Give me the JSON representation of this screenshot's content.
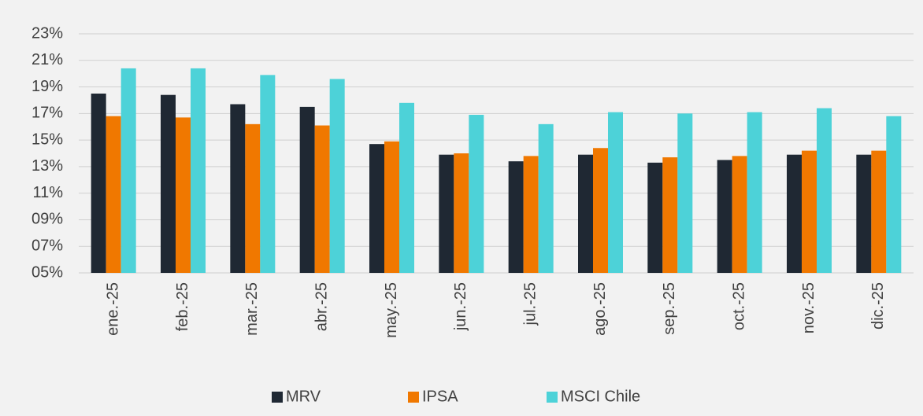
{
  "chart_data": {
    "type": "bar",
    "categories": [
      "ene.-25",
      "feb.-25",
      "mar.-25",
      "abr.-25",
      "may.-25",
      "jun.-25",
      "jul.-25",
      "ago.-25",
      "sep.-25",
      "oct.-25",
      "nov.-25",
      "dic.-25"
    ],
    "series": [
      {
        "name": "MRV",
        "color": "#1f2833",
        "values": [
          18.5,
          18.4,
          17.7,
          17.5,
          14.7,
          13.9,
          13.4,
          13.9,
          13.3,
          13.5,
          13.9,
          13.9
        ]
      },
      {
        "name": "IPSA",
        "color": "#f07800",
        "values": [
          16.8,
          16.7,
          16.2,
          16.1,
          14.9,
          14.0,
          13.8,
          14.4,
          13.7,
          13.8,
          14.2,
          14.2
        ]
      },
      {
        "name": "MSCI Chile",
        "color": "#4dd2d8",
        "values": [
          20.4,
          20.4,
          19.9,
          19.6,
          17.8,
          16.9,
          16.2,
          17.1,
          17.0,
          17.1,
          17.4,
          16.8
        ]
      }
    ],
    "ylim": [
      5,
      23
    ],
    "yticks": [
      {
        "value": 5,
        "label": "05%"
      },
      {
        "value": 7,
        "label": "07%"
      },
      {
        "value": 9,
        "label": "09%"
      },
      {
        "value": 11,
        "label": "11%"
      },
      {
        "value": 13,
        "label": "13%"
      },
      {
        "value": 15,
        "label": "15%"
      },
      {
        "value": 17,
        "label": "17%"
      },
      {
        "value": 19,
        "label": "19%"
      },
      {
        "value": 21,
        "label": "21%"
      },
      {
        "value": 23,
        "label": "23%"
      }
    ],
    "grid": true,
    "legend": "bottom"
  }
}
